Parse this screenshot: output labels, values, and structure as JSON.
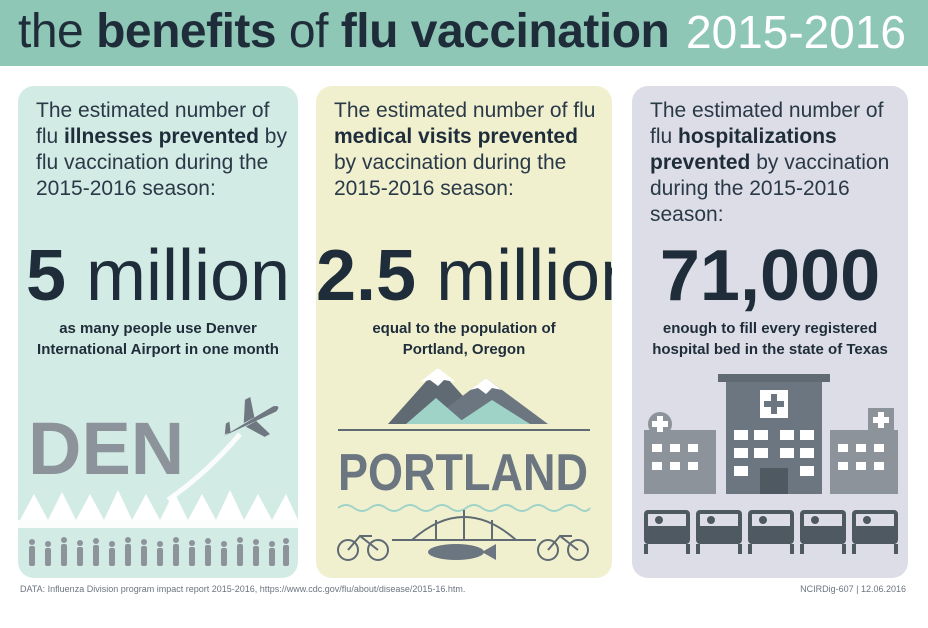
{
  "header": {
    "title_the": "the ",
    "title_benefits": "benefits",
    "title_of": " of ",
    "title_flu": "flu vaccination",
    "season": "2015-2016"
  },
  "panels": [
    {
      "desc_pre": "The estimated number of flu ",
      "desc_bold": "illnesses prevented",
      "desc_post": " by flu vaccination during the 2015-2016 season:",
      "number": "5",
      "unit": " million",
      "compare_1": "as many people use Denver",
      "compare_2": "International Airport in one month",
      "art_label": "DEN"
    },
    {
      "desc_pre": "The estimated number of flu ",
      "desc_bold": "medical visits prevented",
      "desc_post": " by vaccination during the 2015-2016 season:",
      "number": "2.5",
      "unit": " million",
      "compare_1": "equal to the population of",
      "compare_2": "Portland, Oregon",
      "art_label": "PORTLAND"
    },
    {
      "desc_pre": "The estimated number of flu ",
      "desc_bold": "hospitalizations prevented",
      "desc_post": " by vaccination during the 2015-2016 season:",
      "number": "71,000",
      "unit": "",
      "compare_1": "enough to fill every registered",
      "compare_2": "hospital bed in the state of Texas"
    }
  ],
  "footer": {
    "source": "DATA: Influenza Division program impact report 2015-2016, https://www.cdc.gov/flu/about/disease/2015-16.htm.",
    "code": "NCIRDig-607 | 12.06.2016"
  },
  "colors": {
    "header": "#8fc7b6",
    "panel_1": "#d3ebe5",
    "panel_2": "#f0f0cf",
    "panel_3": "#dcdde6",
    "ink": "#1f2d3a"
  }
}
